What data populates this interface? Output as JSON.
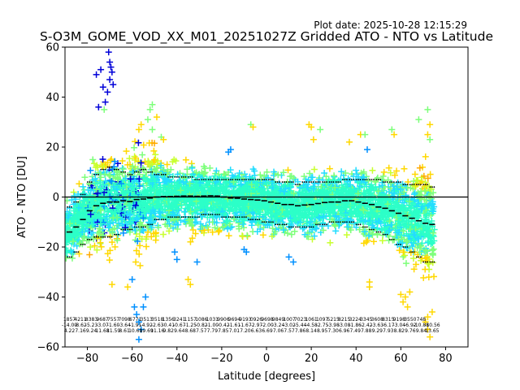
{
  "plot_date": "Plot date: 2025-10-28 12:15:29",
  "chart_data": {
    "type": "scatter",
    "title": "S-O3M_GOME_VOD_XX_M01_20251027Z Gridded ATO - NTO vs Latitude",
    "xlabel": "Latitude [degrees]",
    "ylabel": "ATO - NTO [DU]",
    "xlim": [
      -90,
      90
    ],
    "ylim": [
      -60,
      60
    ],
    "xticks": [
      -80,
      -60,
      -40,
      -20,
      0,
      20,
      40,
      60,
      80
    ],
    "yticks": [
      -60,
      -40,
      -20,
      0,
      20,
      40,
      60
    ],
    "zero_line": 0,
    "grid": false,
    "legend": "none",
    "marker": "+",
    "colormap": [
      "#0000d8",
      "#0090ff",
      "#22ddff",
      "#2cffc8",
      "#7dff7a",
      "#c8ff2e",
      "#ffd800",
      "#ffaa00"
    ],
    "envelope": [
      {
        "x": -90,
        "lo": -30,
        "hi": 8,
        "center": -14
      },
      {
        "x": -87,
        "lo": -30,
        "hi": 10,
        "center": -13
      },
      {
        "x": -84,
        "lo": -28,
        "hi": 14,
        "center": -10
      },
      {
        "x": -81,
        "lo": -28,
        "hi": 18,
        "center": -6
      },
      {
        "x": -78,
        "lo": -30,
        "hi": 28,
        "center": -4
      },
      {
        "x": -75,
        "lo": -30,
        "hi": 30,
        "center": -3
      },
      {
        "x": -72,
        "lo": -33,
        "hi": 38,
        "center": -2
      },
      {
        "x": -69,
        "lo": -35,
        "hi": 40,
        "center": -2
      },
      {
        "x": -66,
        "lo": -32,
        "hi": 28,
        "center": -2
      },
      {
        "x": -63,
        "lo": -30,
        "hi": 22,
        "center": -1
      },
      {
        "x": -60,
        "lo": -40,
        "hi": 20,
        "center": -2
      },
      {
        "x": -57,
        "lo": -48,
        "hi": 26,
        "center": -1
      },
      {
        "x": -54,
        "lo": -38,
        "hi": 30,
        "center": -1
      },
      {
        "x": -51,
        "lo": -30,
        "hi": 32,
        "center": 0
      },
      {
        "x": -48,
        "lo": -28,
        "hi": 24,
        "center": 0
      },
      {
        "x": -45,
        "lo": -26,
        "hi": 22,
        "center": 0
      },
      {
        "x": -42,
        "lo": -26,
        "hi": 20,
        "center": 0
      },
      {
        "x": -39,
        "lo": -25,
        "hi": 20,
        "center": 0
      },
      {
        "x": -36,
        "lo": -25,
        "hi": 20,
        "center": 0
      },
      {
        "x": -33,
        "lo": -26,
        "hi": 20,
        "center": 0
      },
      {
        "x": -30,
        "lo": -25,
        "hi": 19,
        "center": 0
      },
      {
        "x": -27,
        "lo": -25,
        "hi": 19,
        "center": 0
      },
      {
        "x": -24,
        "lo": -25,
        "hi": 18,
        "center": 0
      },
      {
        "x": -21,
        "lo": -26,
        "hi": 19,
        "center": 0
      },
      {
        "x": -18,
        "lo": -24,
        "hi": 18,
        "center": -1
      },
      {
        "x": -15,
        "lo": -24,
        "hi": 18,
        "center": -1
      },
      {
        "x": -12,
        "lo": -24,
        "hi": 18,
        "center": -1
      },
      {
        "x": -9,
        "lo": -22,
        "hi": 18,
        "center": -1
      },
      {
        "x": -6,
        "lo": -22,
        "hi": 19,
        "center": -1
      },
      {
        "x": -3,
        "lo": -22,
        "hi": 19,
        "center": -2
      },
      {
        "x": 0,
        "lo": -22,
        "hi": 20,
        "center": -2
      },
      {
        "x": 3,
        "lo": -22,
        "hi": 18,
        "center": -2
      },
      {
        "x": 6,
        "lo": -22,
        "hi": 17,
        "center": -3
      },
      {
        "x": 9,
        "lo": -22,
        "hi": 17,
        "center": -3
      },
      {
        "x": 12,
        "lo": -22,
        "hi": 17,
        "center": -3
      },
      {
        "x": 15,
        "lo": -22,
        "hi": 18,
        "center": -4
      },
      {
        "x": 18,
        "lo": -22,
        "hi": 18,
        "center": -3
      },
      {
        "x": 21,
        "lo": -23,
        "hi": 20,
        "center": -3
      },
      {
        "x": 24,
        "lo": -22,
        "hi": 19,
        "center": -2
      },
      {
        "x": 27,
        "lo": -22,
        "hi": 18,
        "center": -2
      },
      {
        "x": 30,
        "lo": -23,
        "hi": 17,
        "center": -2
      },
      {
        "x": 33,
        "lo": -23,
        "hi": 17,
        "center": -2
      },
      {
        "x": 36,
        "lo": -24,
        "hi": 18,
        "center": -1
      },
      {
        "x": 39,
        "lo": -24,
        "hi": 20,
        "center": -2
      },
      {
        "x": 42,
        "lo": -26,
        "hi": 21,
        "center": -2
      },
      {
        "x": 45,
        "lo": -27,
        "hi": 22,
        "center": -3
      },
      {
        "x": 48,
        "lo": -27,
        "hi": 21,
        "center": -4
      },
      {
        "x": 51,
        "lo": -27,
        "hi": 22,
        "center": -4
      },
      {
        "x": 54,
        "lo": -28,
        "hi": 22,
        "center": -5
      },
      {
        "x": 57,
        "lo": -34,
        "hi": 22,
        "center": -6
      },
      {
        "x": 60,
        "lo": -38,
        "hi": 20,
        "center": -7
      },
      {
        "x": 63,
        "lo": -42,
        "hi": 20,
        "center": -8
      },
      {
        "x": 66,
        "lo": -44,
        "hi": 20,
        "center": -9
      },
      {
        "x": 69,
        "lo": -46,
        "hi": 22,
        "center": -10
      },
      {
        "x": 72,
        "lo": -50,
        "hi": 28,
        "center": -11
      },
      {
        "x": 75,
        "lo": -46,
        "hi": 18,
        "center": -11
      }
    ],
    "mean_bins": [
      {
        "x": -88,
        "mean": -14.0,
        "sd_hi": -4,
        "sd_lo": -24
      },
      {
        "x": -85,
        "mean": -12.0,
        "sd_hi": -2,
        "sd_lo": -22
      },
      {
        "x": -82,
        "mean": -9.0,
        "sd_hi": 1,
        "sd_lo": -19
      },
      {
        "x": -79,
        "mean": -5.5,
        "sd_hi": 6,
        "sd_lo": -17
      },
      {
        "x": -76,
        "mean": -3.5,
        "sd_hi": 9,
        "sd_lo": -16
      },
      {
        "x": -73,
        "mean": -2.5,
        "sd_hi": 11,
        "sd_lo": -16
      },
      {
        "x": -70,
        "mean": -2.0,
        "sd_hi": 12,
        "sd_lo": -16
      },
      {
        "x": -67,
        "mean": -2.0,
        "sd_hi": 11,
        "sd_lo": -15
      },
      {
        "x": -64,
        "mean": -1.5,
        "sd_hi": 10,
        "sd_lo": -13
      },
      {
        "x": -61,
        "mean": -1.8,
        "sd_hi": 9,
        "sd_lo": -13
      },
      {
        "x": -58,
        "mean": -1.0,
        "sd_hi": 10,
        "sd_lo": -12
      },
      {
        "x": -55,
        "mean": -0.8,
        "sd_hi": 11,
        "sd_lo": -12
      },
      {
        "x": -52,
        "mean": -0.4,
        "sd_hi": 10,
        "sd_lo": -11
      },
      {
        "x": -49,
        "mean": 0.0,
        "sd_hi": 9,
        "sd_lo": -9
      },
      {
        "x": -46,
        "mean": 0.2,
        "sd_hi": 9,
        "sd_lo": -9
      },
      {
        "x": -43,
        "mean": 0.2,
        "sd_hi": 8,
        "sd_lo": -8
      },
      {
        "x": -40,
        "mean": 0.3,
        "sd_hi": 8,
        "sd_lo": -8
      },
      {
        "x": -37,
        "mean": 0.4,
        "sd_hi": 8,
        "sd_lo": -8
      },
      {
        "x": -34,
        "mean": 0.4,
        "sd_hi": 8,
        "sd_lo": -8
      },
      {
        "x": -31,
        "mean": 0.3,
        "sd_hi": 7,
        "sd_lo": -8
      },
      {
        "x": -28,
        "mean": 0.4,
        "sd_hi": 7,
        "sd_lo": -7
      },
      {
        "x": -25,
        "mean": 0.5,
        "sd_hi": 7,
        "sd_lo": -7
      },
      {
        "x": -22,
        "mean": 0.4,
        "sd_hi": 7,
        "sd_lo": -7
      },
      {
        "x": -19,
        "mean": 0.0,
        "sd_hi": 7,
        "sd_lo": -8
      },
      {
        "x": -16,
        "mean": -0.4,
        "sd_hi": 7,
        "sd_lo": -8
      },
      {
        "x": -13,
        "mean": -0.5,
        "sd_hi": 7,
        "sd_lo": -8
      },
      {
        "x": -10,
        "mean": -0.8,
        "sd_hi": 7,
        "sd_lo": -8
      },
      {
        "x": -7,
        "mean": -1.0,
        "sd_hi": 7,
        "sd_lo": -9
      },
      {
        "x": -4,
        "mean": -1.2,
        "sd_hi": 7,
        "sd_lo": -9
      },
      {
        "x": -1,
        "mean": -1.5,
        "sd_hi": 7,
        "sd_lo": -10
      },
      {
        "x": 2,
        "mean": -2.0,
        "sd_hi": 7,
        "sd_lo": -10
      },
      {
        "x": 5,
        "mean": -2.5,
        "sd_hi": 6,
        "sd_lo": -11
      },
      {
        "x": 8,
        "mean": -3.0,
        "sd_hi": 6,
        "sd_lo": -11
      },
      {
        "x": 11,
        "mean": -3.0,
        "sd_hi": 6,
        "sd_lo": -12
      },
      {
        "x": 14,
        "mean": -3.5,
        "sd_hi": 5,
        "sd_lo": -12
      },
      {
        "x": 17,
        "mean": -3.2,
        "sd_hi": 6,
        "sd_lo": -12
      },
      {
        "x": 20,
        "mean": -3.0,
        "sd_hi": 6,
        "sd_lo": -12
      },
      {
        "x": 23,
        "mean": -2.6,
        "sd_hi": 6,
        "sd_lo": -11
      },
      {
        "x": 26,
        "mean": -2.2,
        "sd_hi": 6,
        "sd_lo": -11
      },
      {
        "x": 29,
        "mean": -2.0,
        "sd_hi": 6,
        "sd_lo": -10
      },
      {
        "x": 32,
        "mean": -2.0,
        "sd_hi": 6,
        "sd_lo": -10
      },
      {
        "x": 35,
        "mean": -1.5,
        "sd_hi": 7,
        "sd_lo": -10
      },
      {
        "x": 38,
        "mean": -1.5,
        "sd_hi": 7,
        "sd_lo": -10
      },
      {
        "x": 41,
        "mean": -2.0,
        "sd_hi": 7,
        "sd_lo": -11
      },
      {
        "x": 44,
        "mean": -2.5,
        "sd_hi": 7,
        "sd_lo": -12
      },
      {
        "x": 47,
        "mean": -3.0,
        "sd_hi": 7,
        "sd_lo": -13
      },
      {
        "x": 50,
        "mean": -4.0,
        "sd_hi": 7,
        "sd_lo": -14
      },
      {
        "x": 53,
        "mean": -4.5,
        "sd_hi": 6,
        "sd_lo": -15
      },
      {
        "x": 56,
        "mean": -5.5,
        "sd_hi": 6,
        "sd_lo": -17
      },
      {
        "x": 59,
        "mean": -6.5,
        "sd_hi": 6,
        "sd_lo": -19
      },
      {
        "x": 62,
        "mean": -7.5,
        "sd_hi": 5,
        "sd_lo": -20
      },
      {
        "x": 65,
        "mean": -8.5,
        "sd_hi": 5,
        "sd_lo": -22
      },
      {
        "x": 68,
        "mean": -9.5,
        "sd_hi": 5,
        "sd_lo": -24
      },
      {
        "x": 71,
        "mean": -10.5,
        "sd_hi": 5,
        "sd_lo": -26
      },
      {
        "x": 74,
        "mean": -11.0,
        "sd_hi": 4,
        "sd_lo": -26
      }
    ],
    "outliers": [
      {
        "x": -70.5,
        "y": 58
      },
      {
        "x": -70,
        "y": 54
      },
      {
        "x": -69.5,
        "y": 52
      },
      {
        "x": -69,
        "y": 50
      },
      {
        "x": -70,
        "y": 47
      },
      {
        "x": -68.5,
        "y": 45
      },
      {
        "x": -71,
        "y": 42
      },
      {
        "x": -72,
        "y": 38
      },
      {
        "x": -73,
        "y": 44
      },
      {
        "x": -76,
        "y": 49
      },
      {
        "x": -74,
        "y": 51
      },
      {
        "x": -75,
        "y": 36
      },
      {
        "x": -72.5,
        "y": 35
      },
      {
        "x": -57,
        "y": 27
      },
      {
        "x": -56,
        "y": 29
      },
      {
        "x": -52,
        "y": 35
      },
      {
        "x": -51,
        "y": 37
      },
      {
        "x": -53,
        "y": 31
      },
      {
        "x": -49,
        "y": 32
      },
      {
        "x": -51,
        "y": 27
      },
      {
        "x": -59,
        "y": -44
      },
      {
        "x": -58,
        "y": -47
      },
      {
        "x": -57,
        "y": -50
      },
      {
        "x": -56,
        "y": -53
      },
      {
        "x": -57,
        "y": -57
      },
      {
        "x": -55,
        "y": -44
      },
      {
        "x": -62,
        "y": -36
      },
      {
        "x": -54,
        "y": -40
      },
      {
        "x": -60,
        "y": -33
      },
      {
        "x": -69,
        "y": -35
      },
      {
        "x": -34,
        "y": -35
      },
      {
        "x": -35,
        "y": -33
      },
      {
        "x": -16,
        "y": 19
      },
      {
        "x": -17,
        "y": 18
      },
      {
        "x": -7,
        "y": 29
      },
      {
        "x": -6,
        "y": 28
      },
      {
        "x": 20,
        "y": 28
      },
      {
        "x": 19,
        "y": 29
      },
      {
        "x": 24,
        "y": 27
      },
      {
        "x": 21,
        "y": 23
      },
      {
        "x": 37,
        "y": 22
      },
      {
        "x": 42,
        "y": 25
      },
      {
        "x": 44,
        "y": 25
      },
      {
        "x": 45,
        "y": 19
      },
      {
        "x": 46,
        "y": -34
      },
      {
        "x": 46,
        "y": -36
      },
      {
        "x": 60,
        "y": -39
      },
      {
        "x": 61,
        "y": -42
      },
      {
        "x": 62,
        "y": -40
      },
      {
        "x": 63,
        "y": -44
      },
      {
        "x": 64,
        "y": -38
      },
      {
        "x": 68,
        "y": 31
      },
      {
        "x": 72,
        "y": 35
      },
      {
        "x": 73,
        "y": 29
      },
      {
        "x": 72,
        "y": 25
      },
      {
        "x": 73,
        "y": 23
      },
      {
        "x": 72,
        "y": -53
      },
      {
        "x": 73,
        "y": -56
      },
      {
        "x": 71,
        "y": -50
      },
      {
        "x": 72,
        "y": -48
      },
      {
        "x": 74,
        "y": -46
      },
      {
        "x": 56,
        "y": 27
      },
      {
        "x": 57,
        "y": 25
      },
      {
        "x": -10,
        "y": -21
      },
      {
        "x": -9,
        "y": -22
      },
      {
        "x": 12,
        "y": -26
      },
      {
        "x": 10,
        "y": -24
      },
      {
        "x": -31,
        "y": -26
      },
      {
        "x": -40,
        "y": -25
      },
      {
        "x": -41,
        "y": -22
      },
      {
        "x": -47,
        "y": 24
      },
      {
        "x": -46,
        "y": 23
      }
    ],
    "bin_stats": [
      {
        "n": "1857",
        "mean": "-14.09",
        "sd": "4.22"
      },
      {
        "n": "4211",
        "mean": "-8.62",
        "sd": "7.16"
      },
      {
        "n": "8383",
        "mean": "-5.23",
        "sd": "9.24"
      },
      {
        "n": "9687",
        "mean": "-3.07",
        "sd": "11.68"
      },
      {
        "n": "7557",
        "mean": "-1.60",
        "sd": "11.59"
      },
      {
        "n": "7098",
        "mean": "-3.64",
        "sd": "8.61"
      },
      {
        "n": "6771",
        "mean": "-1.91",
        "sd": "10.60"
      },
      {
        "n": "3513",
        "mean": "-4.92",
        "sd": "19.69"
      },
      {
        "n": "3518",
        "mean": "-2.63",
        "sd": "11.16"
      },
      {
        "n": "1356",
        "mean": "-0.41",
        "sd": "9.82"
      },
      {
        "n": "3241",
        "mean": "-0.67",
        "sd": "9.64"
      },
      {
        "n": "1157",
        "mean": "-1.25",
        "sd": "8.68"
      },
      {
        "n": "1086",
        "mean": "-0.82",
        "sd": "7.57"
      },
      {
        "n": "1031",
        "mean": "-1.00",
        "sd": "7.79"
      },
      {
        "n": "9906",
        "mean": "-0.42",
        "sd": "7.85"
      },
      {
        "n": "9694",
        "mean": "-1.61",
        "sd": "7.01"
      },
      {
        "n": "9193",
        "mean": "-1.67",
        "sd": "7.20"
      },
      {
        "n": "0926",
        "mean": "-2.97",
        "sd": "6.63"
      },
      {
        "n": "9698",
        "mean": "-2.00",
        "sd": "6.69"
      },
      {
        "n": "9849",
        "mean": "-3.24",
        "sd": "7.06"
      },
      {
        "n": "1007",
        "mean": "-3.02",
        "sd": "7.57"
      },
      {
        "n": "7023",
        "mean": "-5.44",
        "sd": "7.86"
      },
      {
        "n": "1061",
        "mean": "-4.58",
        "sd": "8.14"
      },
      {
        "n": "1097",
        "mean": "-2.75",
        "sd": "8.95"
      },
      {
        "n": "5215",
        "mean": "-3.98",
        "sd": "7.30"
      },
      {
        "n": "8215",
        "mean": "-3.08",
        "sd": "6.96"
      },
      {
        "n": "3224",
        "mean": "-1.86",
        "sd": "7.49"
      },
      {
        "n": "3345",
        "mean": "-2.42",
        "sd": "7.88"
      },
      {
        "n": "3608",
        "mean": "-3.63",
        "sd": "9.29"
      },
      {
        "n": "8315",
        "mean": "-6.17",
        "sd": "7.93"
      },
      {
        "n": "9198",
        "mean": "-3.04",
        "sd": "8.82"
      },
      {
        "n": "3550",
        "mean": "-6.92",
        "sd": "9.76"
      },
      {
        "n": "748",
        "mean": "-10.88",
        "sd": "9.84"
      },
      {
        "n": "",
        "mean": "-10.56",
        "sd": "13.65"
      }
    ]
  }
}
